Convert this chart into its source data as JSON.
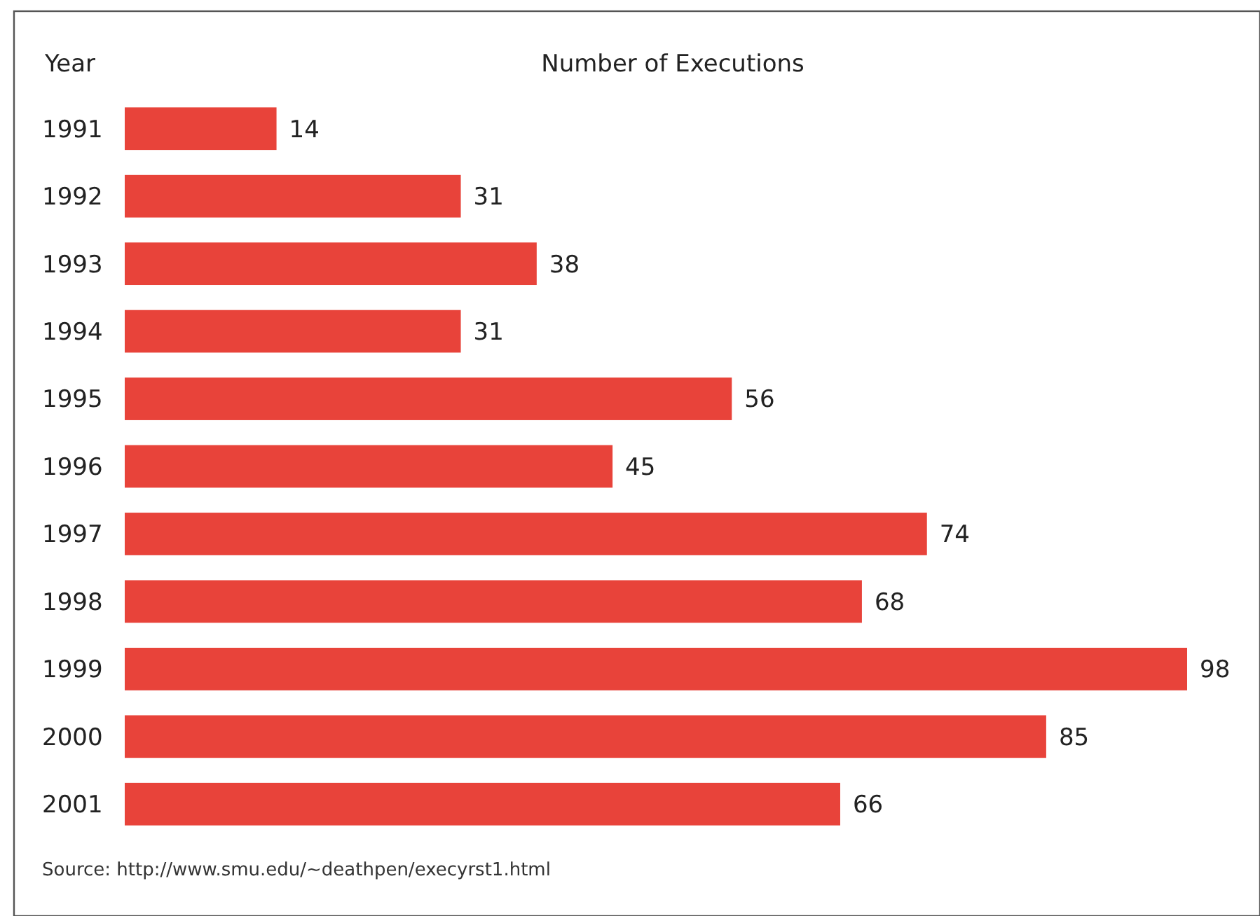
{
  "chart_data": {
    "type": "bar",
    "orientation": "horizontal",
    "title": "Number of Executions",
    "ylabel": "Year",
    "categories": [
      "1991",
      "1992",
      "1993",
      "1994",
      "1995",
      "1996",
      "1997",
      "1998",
      "1999",
      "2000",
      "2001"
    ],
    "values": [
      14,
      31,
      38,
      31,
      56,
      45,
      74,
      68,
      98,
      85,
      66
    ],
    "color": "#e8433a",
    "data_labels": true,
    "tick_labels": "y",
    "annotations": [
      "Source: http://www.smu.edu/~deathpen/execyrst1.html"
    ]
  }
}
